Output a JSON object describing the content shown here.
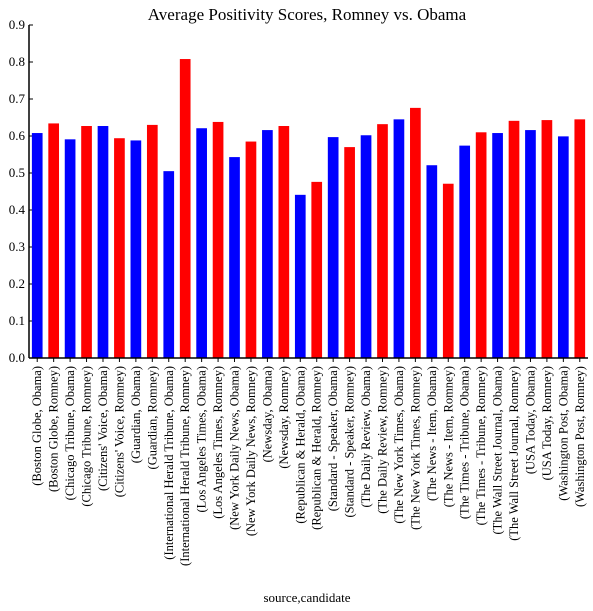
{
  "chart_data": {
    "type": "bar",
    "title": "Average Positivity Scores, Romney vs. Obama",
    "xlabel": "source,candidate",
    "ylabel": "",
    "ylim": [
      0,
      0.9
    ],
    "yticks": [
      "0.0",
      "0.1",
      "0.2",
      "0.3",
      "0.4",
      "0.5",
      "0.6",
      "0.7",
      "0.8",
      "0.9"
    ],
    "grid": false,
    "legend": "none",
    "colors": {
      "Obama": "#0000ff",
      "Romney": "#ff0000"
    },
    "categories": [
      "(Boston Globe, Obama)",
      "(Boston Globe, Romney)",
      "(Chicago Tribune, Obama)",
      "(Chicago Tribune, Romney)",
      "(Citizens' Voice, Obama)",
      "(Citizens' Voice, Romney)",
      "(Guardian, Obama)",
      "(Guardian, Romney)",
      "(International Herald Tribune, Obama)",
      "(International Herald Tribune, Romney)",
      "(Los Angeles Times, Obama)",
      "(Los Angeles Times, Romney)",
      "(New York Daily News, Obama)",
      "(New York Daily News, Romney)",
      "(Newsday, Obama)",
      "(Newsday, Romney)",
      "(Republican & Herald, Obama)",
      "(Republican & Herald, Romney)",
      "(Standard - Speaker, Obama)",
      "(Standard - Speaker, Romney)",
      "(The Daily Review, Obama)",
      "(The Daily Review, Romney)",
      "(The New York Times, Obama)",
      "(The New York Times, Romney)",
      "(The News - Item, Obama)",
      "(The News - Item, Romney)",
      "(The Times - Tribune, Obama)",
      "(The Times - Tribune, Romney)",
      "(The Wall Street Journal, Obama)",
      "(The Wall Street Journal, Romney)",
      "(USA Today, Obama)",
      "(USA Today, Romney)",
      "(Washington Post, Obama)",
      "(Washington Post, Romney)"
    ],
    "values": [
      0.608,
      0.634,
      0.591,
      0.627,
      0.627,
      0.594,
      0.588,
      0.63,
      0.505,
      0.808,
      0.621,
      0.638,
      0.543,
      0.585,
      0.616,
      0.627,
      0.441,
      0.476,
      0.597,
      0.57,
      0.602,
      0.632,
      0.645,
      0.676,
      0.521,
      0.471,
      0.574,
      0.61,
      0.608,
      0.641,
      0.616,
      0.643,
      0.599,
      0.645
    ],
    "bar_candidates": [
      "Obama",
      "Romney",
      "Obama",
      "Romney",
      "Obama",
      "Romney",
      "Obama",
      "Romney",
      "Obama",
      "Romney",
      "Obama",
      "Romney",
      "Obama",
      "Romney",
      "Obama",
      "Romney",
      "Obama",
      "Romney",
      "Obama",
      "Romney",
      "Obama",
      "Romney",
      "Obama",
      "Romney",
      "Obama",
      "Romney",
      "Obama",
      "Romney",
      "Obama",
      "Romney",
      "Obama",
      "Romney",
      "Obama",
      "Romney"
    ]
  }
}
